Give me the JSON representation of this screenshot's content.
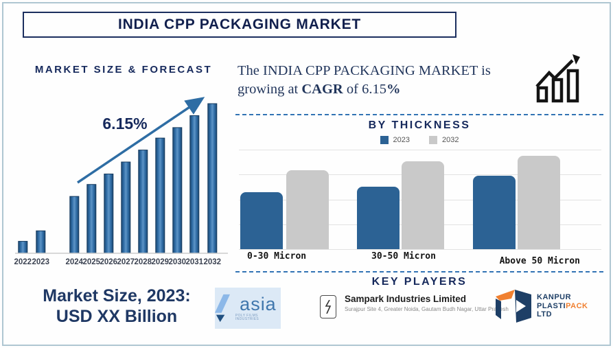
{
  "title": "INDIA CPP PACKAGING MARKET",
  "colors": {
    "navy": "#16295c",
    "bar_blue": "#2e6ba4",
    "bar_stroke": "#163a5e",
    "arrow_blue": "#2e6da4",
    "thickness_blue": "#2c6294",
    "thickness_gray": "#c9c9c9",
    "year_label": "#3c4352",
    "dashed_blue": "#3173b4",
    "orange": "#f08030"
  },
  "forecast": {
    "heading": "MARKET SIZE & FORECAST",
    "annotation": "6.15%"
  },
  "cagr_note": {
    "line1": "The INDIA CPP PACKAGING MARKET is",
    "line2_pre": "growing at ",
    "bold1": "CAGR",
    "mid": " of ",
    "value": "6.15",
    "bold2": "%"
  },
  "market_size": {
    "line1": "Market Size, 2023:",
    "line2": "USD XX Billion"
  },
  "sections": {
    "thickness_heading": "BY THICKNESS",
    "key_players_heading": "KEY PLAYERS"
  },
  "chart_data": [
    {
      "type": "bar",
      "title": "MARKET SIZE & FORECAST",
      "categories": [
        "2022",
        "2023",
        "2024",
        "2025",
        "2026",
        "2027",
        "2028",
        "2029",
        "2030",
        "2031",
        "2032"
      ],
      "values": [
        8,
        15,
        38,
        46,
        53,
        61,
        69,
        77,
        84,
        92,
        100
      ],
      "ylim": [
        0,
        100
      ],
      "xlabel": "",
      "ylabel": "",
      "annotation": "6.15%",
      "grid": false,
      "legend_position": "none"
    },
    {
      "type": "bar",
      "title": "BY THICKNESS",
      "categories": [
        "0-30 Micron",
        "30-50 Micron",
        "Above 50 Micron"
      ],
      "series": [
        {
          "name": "2023",
          "values": [
            57,
            63,
            74
          ]
        },
        {
          "name": "2032",
          "values": [
            79,
            88,
            94
          ]
        }
      ],
      "ylim": [
        0,
        100
      ],
      "xlabel": "",
      "ylabel": "",
      "grid": true,
      "legend_position": "top"
    }
  ],
  "key_players": {
    "asia": {
      "name": "asia",
      "tagline": "POLY FILMS INDUSTRIES"
    },
    "sampark": {
      "name": "Sampark Industries Limited",
      "address": "Surajpur Site 4, Greater Noida, Gautam Budh Nagar, Uttar Pradesh"
    },
    "kanpur": {
      "line1": "KANPUR",
      "line2a": "PLASTI",
      "line2b": "PACK",
      "line3": "LTD"
    }
  }
}
